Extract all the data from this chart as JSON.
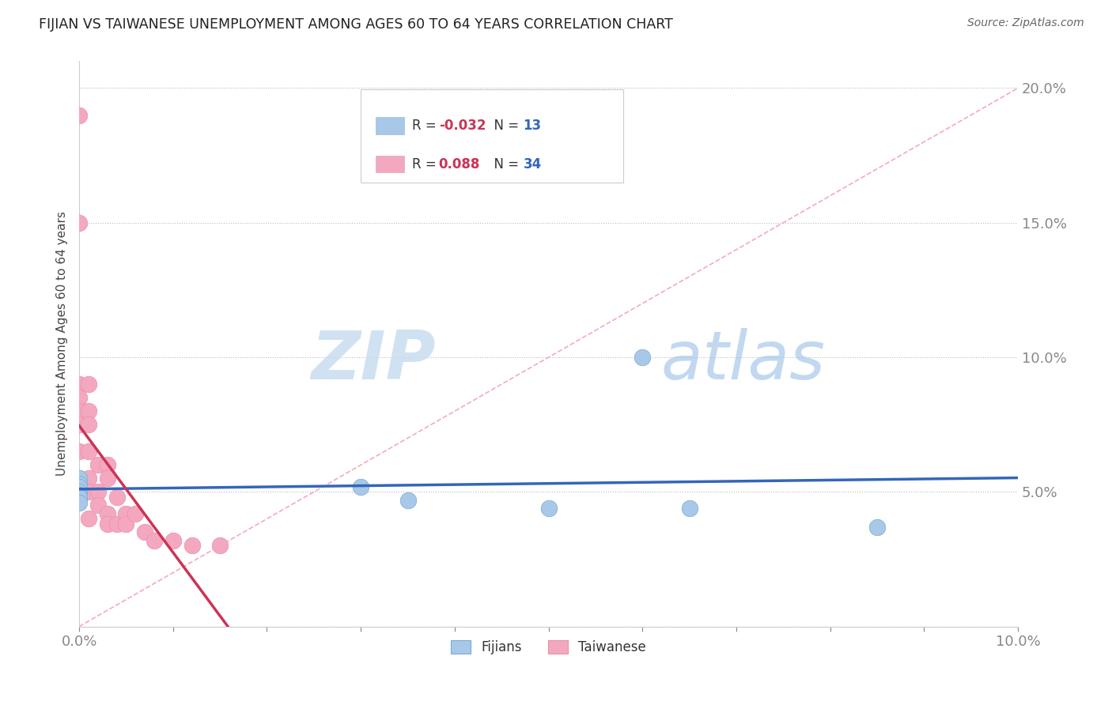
{
  "title": "FIJIAN VS TAIWANESE UNEMPLOYMENT AMONG AGES 60 TO 64 YEARS CORRELATION CHART",
  "source": "Source: ZipAtlas.com",
  "ylabel": "Unemployment Among Ages 60 to 64 years",
  "xlim": [
    0.0,
    0.1
  ],
  "ylim": [
    0.0,
    0.21
  ],
  "xticks": [
    0.0,
    0.01,
    0.02,
    0.03,
    0.04,
    0.05,
    0.06,
    0.07,
    0.08,
    0.09,
    0.1
  ],
  "xtick_labels_show": {
    "0.00": "0.0%",
    "0.10": "10.0%"
  },
  "yticks": [
    0.0,
    0.05,
    0.1,
    0.15,
    0.2
  ],
  "ytick_labels": [
    "",
    "5.0%",
    "10.0%",
    "15.0%",
    "20.0%"
  ],
  "fijian_color": "#A8C8E8",
  "taiwanese_color": "#F4A8C0",
  "fijian_regression_color": "#3366BB",
  "taiwanese_regression_color": "#CC3355",
  "diagonal_color": "#F4A0B8",
  "fijian_points_x": [
    0.0,
    0.0,
    0.0,
    0.0,
    0.0,
    0.0,
    0.0,
    0.03,
    0.035,
    0.05,
    0.06,
    0.065,
    0.085
  ],
  "fijian_points_y": [
    0.055,
    0.053,
    0.052,
    0.05,
    0.049,
    0.048,
    0.046,
    0.052,
    0.047,
    0.044,
    0.1,
    0.044,
    0.037
  ],
  "taiwanese_points_x": [
    0.0,
    0.0,
    0.0,
    0.0,
    0.0,
    0.0,
    0.0,
    0.0,
    0.0,
    0.0,
    0.001,
    0.001,
    0.001,
    0.001,
    0.001,
    0.001,
    0.001,
    0.002,
    0.002,
    0.002,
    0.003,
    0.003,
    0.003,
    0.003,
    0.004,
    0.004,
    0.005,
    0.005,
    0.006,
    0.007,
    0.008,
    0.01,
    0.012,
    0.015
  ],
  "taiwanese_points_y": [
    0.19,
    0.15,
    0.09,
    0.085,
    0.08,
    0.075,
    0.065,
    0.055,
    0.05,
    0.048,
    0.09,
    0.08,
    0.075,
    0.065,
    0.055,
    0.05,
    0.04,
    0.06,
    0.05,
    0.045,
    0.06,
    0.055,
    0.042,
    0.038,
    0.048,
    0.038,
    0.042,
    0.038,
    0.042,
    0.035,
    0.032,
    0.032,
    0.03,
    0.03
  ],
  "watermark_zip": "ZIP",
  "watermark_atlas": "atlas",
  "background_color": "#FFFFFF",
  "r_value_color": "#CC3355",
  "n_value_color": "#3366BB",
  "legend_r_fijian": "-0.032",
  "legend_n_fijian": "13",
  "legend_r_taiwanese": "0.088",
  "legend_n_taiwanese": "34"
}
